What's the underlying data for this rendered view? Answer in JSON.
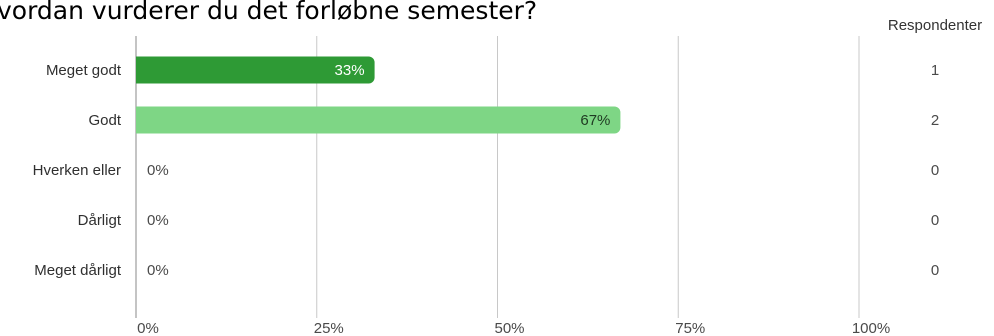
{
  "chart_data": {
    "type": "bar",
    "orientation": "horizontal",
    "title": "vordan vurderer du det forløbne semester?",
    "categories": [
      "Meget godt",
      "Godt",
      "Hverken eller",
      "Dårligt",
      "Meget dårligt"
    ],
    "values": [
      33,
      67,
      0,
      0,
      0
    ],
    "value_labels": [
      "33%",
      "67%",
      "0%",
      "0%",
      "0%"
    ],
    "counts": [
      1,
      2,
      0,
      0,
      0
    ],
    "count_header": "Respondenter",
    "x_ticks": [
      "0%",
      "25%",
      "50%",
      "75%",
      "100%"
    ],
    "xlim": [
      0,
      100
    ],
    "xlabel": "",
    "ylabel": "",
    "grid": true,
    "bar_colors": [
      "#2e9a35",
      "#7ed685",
      "#7ed685",
      "#7ed685",
      "#7ed685"
    ],
    "value_label_colors": [
      "#ffffff",
      "#1f3a22",
      "#4a4a4a",
      "#4a4a4a",
      "#4a4a4a"
    ],
    "grid_color": "#c8c8c8"
  }
}
